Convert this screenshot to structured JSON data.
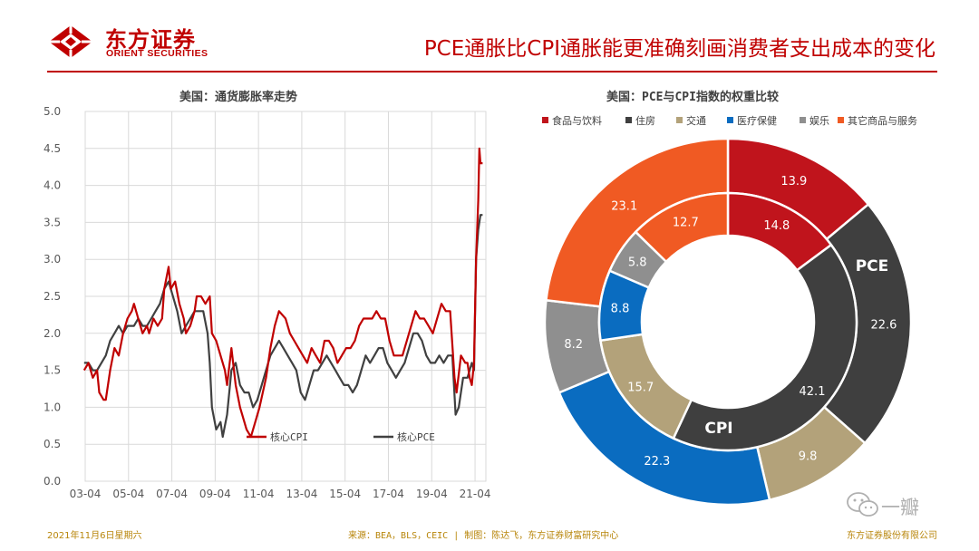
{
  "header": {
    "logo_cn": "东方证券",
    "logo_en": "ORIENT SECURITIES",
    "headline": "PCE通胀比CPI通胀能更准确刻画消费者支出成本的变化",
    "brand_color": "#c00000"
  },
  "footer": {
    "date": "2021年11月6日星期六",
    "source": "来源：BEA，BLS，CEIC | 制图：陈达飞，东方证券财富研究中心",
    "company": "东方证券股份有限公司"
  },
  "watermark": {
    "text": "一瓣"
  },
  "chart_data": [
    {
      "type": "line",
      "title": "美国：通货膨胀率走势",
      "ylim": [
        0,
        5
      ],
      "yticks": [
        "0.0",
        "0.5",
        "1.0",
        "1.5",
        "2.0",
        "2.5",
        "3.0",
        "3.5",
        "4.0",
        "4.5",
        "5.0"
      ],
      "xlim": [
        2003.25,
        2021.75
      ],
      "xtick_values": [
        2003.25,
        2005.25,
        2007.25,
        2009.25,
        2011.25,
        2013.25,
        2015.25,
        2017.25,
        2019.25,
        2021.25
      ],
      "xtick_labels": [
        "03-04",
        "05-04",
        "07-04",
        "09-04",
        "11-04",
        "13-04",
        "15-04",
        "17-04",
        "19-04",
        "21-04"
      ],
      "grid": true,
      "legend_position": "bottom-center",
      "series": [
        {
          "name": "核心CPI",
          "color": "#c00000",
          "points": [
            [
              2003.2,
              1.5
            ],
            [
              2003.4,
              1.6
            ],
            [
              2003.6,
              1.4
            ],
            [
              2003.8,
              1.5
            ],
            [
              2003.9,
              1.2
            ],
            [
              2004.1,
              1.1
            ],
            [
              2004.2,
              1.1
            ],
            [
              2004.4,
              1.5
            ],
            [
              2004.6,
              1.8
            ],
            [
              2004.8,
              1.7
            ],
            [
              2005.0,
              2.0
            ],
            [
              2005.2,
              2.2
            ],
            [
              2005.4,
              2.3
            ],
            [
              2005.5,
              2.4
            ],
            [
              2005.7,
              2.2
            ],
            [
              2005.9,
              2.0
            ],
            [
              2006.1,
              2.1
            ],
            [
              2006.2,
              2.0
            ],
            [
              2006.4,
              2.2
            ],
            [
              2006.6,
              2.1
            ],
            [
              2006.8,
              2.2
            ],
            [
              2006.9,
              2.6
            ],
            [
              2007.1,
              2.9
            ],
            [
              2007.2,
              2.6
            ],
            [
              2007.4,
              2.7
            ],
            [
              2007.6,
              2.4
            ],
            [
              2007.8,
              2.2
            ],
            [
              2007.9,
              2.0
            ],
            [
              2008.1,
              2.1
            ],
            [
              2008.3,
              2.3
            ],
            [
              2008.4,
              2.5
            ],
            [
              2008.6,
              2.5
            ],
            [
              2008.8,
              2.4
            ],
            [
              2009.0,
              2.5
            ],
            [
              2009.1,
              2.0
            ],
            [
              2009.3,
              1.9
            ],
            [
              2009.5,
              1.7
            ],
            [
              2009.7,
              1.5
            ],
            [
              2009.8,
              1.3
            ],
            [
              2010.0,
              1.8
            ],
            [
              2010.2,
              1.3
            ],
            [
              2010.4,
              1.0
            ],
            [
              2010.5,
              0.9
            ],
            [
              2010.7,
              0.7
            ],
            [
              2010.9,
              0.6
            ],
            [
              2011.1,
              0.8
            ],
            [
              2011.3,
              1.0
            ],
            [
              2011.6,
              1.4
            ],
            [
              2011.8,
              1.8
            ],
            [
              2012.0,
              2.1
            ],
            [
              2012.2,
              2.3
            ],
            [
              2012.5,
              2.2
            ],
            [
              2012.7,
              2.0
            ],
            [
              2012.9,
              1.9
            ],
            [
              2013.1,
              1.8
            ],
            [
              2013.3,
              1.7
            ],
            [
              2013.5,
              1.6
            ],
            [
              2013.7,
              1.8
            ],
            [
              2013.9,
              1.7
            ],
            [
              2014.1,
              1.6
            ],
            [
              2014.3,
              1.9
            ],
            [
              2014.5,
              1.9
            ],
            [
              2014.7,
              1.8
            ],
            [
              2014.9,
              1.6
            ],
            [
              2015.1,
              1.7
            ],
            [
              2015.3,
              1.8
            ],
            [
              2015.5,
              1.8
            ],
            [
              2015.7,
              1.9
            ],
            [
              2015.9,
              2.1
            ],
            [
              2016.1,
              2.2
            ],
            [
              2016.3,
              2.2
            ],
            [
              2016.5,
              2.2
            ],
            [
              2016.7,
              2.3
            ],
            [
              2016.9,
              2.2
            ],
            [
              2017.1,
              2.2
            ],
            [
              2017.3,
              1.9
            ],
            [
              2017.5,
              1.7
            ],
            [
              2017.7,
              1.7
            ],
            [
              2017.9,
              1.7
            ],
            [
              2018.1,
              1.9
            ],
            [
              2018.3,
              2.1
            ],
            [
              2018.5,
              2.3
            ],
            [
              2018.7,
              2.2
            ],
            [
              2018.9,
              2.2
            ],
            [
              2019.1,
              2.1
            ],
            [
              2019.3,
              2.0
            ],
            [
              2019.5,
              2.2
            ],
            [
              2019.7,
              2.4
            ],
            [
              2019.9,
              2.3
            ],
            [
              2020.1,
              2.3
            ],
            [
              2020.3,
              1.4
            ],
            [
              2020.4,
              1.2
            ],
            [
              2020.6,
              1.7
            ],
            [
              2020.8,
              1.6
            ],
            [
              2020.9,
              1.6
            ],
            [
              2021.0,
              1.4
            ],
            [
              2021.1,
              1.3
            ],
            [
              2021.2,
              1.6
            ],
            [
              2021.3,
              3.0
            ],
            [
              2021.4,
              3.8
            ],
            [
              2021.45,
              4.5
            ],
            [
              2021.5,
              4.3
            ],
            [
              2021.6,
              4.3
            ]
          ]
        },
        {
          "name": "核心PCE",
          "color": "#404040",
          "points": [
            [
              2003.2,
              1.6
            ],
            [
              2003.4,
              1.6
            ],
            [
              2003.6,
              1.5
            ],
            [
              2003.8,
              1.5
            ],
            [
              2004.0,
              1.6
            ],
            [
              2004.2,
              1.7
            ],
            [
              2004.4,
              1.9
            ],
            [
              2004.6,
              2.0
            ],
            [
              2004.8,
              2.1
            ],
            [
              2005.0,
              2.0
            ],
            [
              2005.2,
              2.1
            ],
            [
              2005.5,
              2.1
            ],
            [
              2005.7,
              2.2
            ],
            [
              2005.9,
              2.1
            ],
            [
              2006.1,
              2.1
            ],
            [
              2006.3,
              2.2
            ],
            [
              2006.5,
              2.3
            ],
            [
              2006.7,
              2.4
            ],
            [
              2006.9,
              2.6
            ],
            [
              2007.1,
              2.7
            ],
            [
              2007.3,
              2.5
            ],
            [
              2007.5,
              2.3
            ],
            [
              2007.7,
              2.0
            ],
            [
              2007.9,
              2.1
            ],
            [
              2008.1,
              2.2
            ],
            [
              2008.3,
              2.3
            ],
            [
              2008.5,
              2.3
            ],
            [
              2008.7,
              2.3
            ],
            [
              2008.9,
              2.0
            ],
            [
              2009.0,
              1.6
            ],
            [
              2009.1,
              1.0
            ],
            [
              2009.3,
              0.7
            ],
            [
              2009.5,
              0.8
            ],
            [
              2009.6,
              0.6
            ],
            [
              2009.8,
              0.9
            ],
            [
              2010.0,
              1.5
            ],
            [
              2010.2,
              1.6
            ],
            [
              2010.4,
              1.3
            ],
            [
              2010.6,
              1.2
            ],
            [
              2010.8,
              1.2
            ],
            [
              2011.0,
              1.0
            ],
            [
              2011.2,
              1.1
            ],
            [
              2011.4,
              1.3
            ],
            [
              2011.6,
              1.5
            ],
            [
              2011.8,
              1.7
            ],
            [
              2012.0,
              1.8
            ],
            [
              2012.2,
              1.9
            ],
            [
              2012.4,
              1.8
            ],
            [
              2012.6,
              1.7
            ],
            [
              2012.8,
              1.6
            ],
            [
              2013.0,
              1.5
            ],
            [
              2013.2,
              1.2
            ],
            [
              2013.4,
              1.1
            ],
            [
              2013.6,
              1.3
            ],
            [
              2013.8,
              1.5
            ],
            [
              2014.0,
              1.5
            ],
            [
              2014.2,
              1.6
            ],
            [
              2014.4,
              1.7
            ],
            [
              2014.6,
              1.6
            ],
            [
              2014.8,
              1.5
            ],
            [
              2015.0,
              1.4
            ],
            [
              2015.2,
              1.3
            ],
            [
              2015.4,
              1.3
            ],
            [
              2015.6,
              1.2
            ],
            [
              2015.8,
              1.3
            ],
            [
              2016.0,
              1.5
            ],
            [
              2016.2,
              1.7
            ],
            [
              2016.4,
              1.6
            ],
            [
              2016.6,
              1.7
            ],
            [
              2016.8,
              1.8
            ],
            [
              2017.0,
              1.8
            ],
            [
              2017.2,
              1.6
            ],
            [
              2017.4,
              1.5
            ],
            [
              2017.6,
              1.4
            ],
            [
              2017.8,
              1.5
            ],
            [
              2018.0,
              1.6
            ],
            [
              2018.2,
              1.8
            ],
            [
              2018.4,
              2.0
            ],
            [
              2018.6,
              2.0
            ],
            [
              2018.8,
              1.9
            ],
            [
              2019.0,
              1.7
            ],
            [
              2019.2,
              1.6
            ],
            [
              2019.4,
              1.6
            ],
            [
              2019.6,
              1.7
            ],
            [
              2019.8,
              1.6
            ],
            [
              2020.0,
              1.7
            ],
            [
              2020.2,
              1.7
            ],
            [
              2020.35,
              0.9
            ],
            [
              2020.5,
              1.0
            ],
            [
              2020.7,
              1.4
            ],
            [
              2020.9,
              1.4
            ],
            [
              2021.0,
              1.5
            ],
            [
              2021.1,
              1.6
            ],
            [
              2021.2,
              1.5
            ],
            [
              2021.3,
              3.0
            ],
            [
              2021.4,
              3.4
            ],
            [
              2021.5,
              3.6
            ],
            [
              2021.6,
              3.6
            ]
          ]
        }
      ]
    },
    {
      "type": "pie",
      "subtype": "donut",
      "title": "美国：PCE与CPI指数的权重比较",
      "legend_position": "top",
      "categories": [
        "食品与饮料",
        "住房",
        "交通",
        "医疗保健",
        "娱乐",
        "其它商品与服务"
      ],
      "colors": [
        "#c0141c",
        "#3f3f3f",
        "#b3a27a",
        "#0a6cc0",
        "#8f8f8f",
        "#f05a23"
      ],
      "rings": [
        {
          "name": "PCE",
          "values": [
            13.9,
            22.6,
            9.8,
            22.3,
            8.2,
            23.1
          ]
        },
        {
          "name": "CPI",
          "values": [
            14.8,
            42.1,
            15.7,
            8.8,
            5.8,
            12.7
          ]
        }
      ]
    }
  ]
}
